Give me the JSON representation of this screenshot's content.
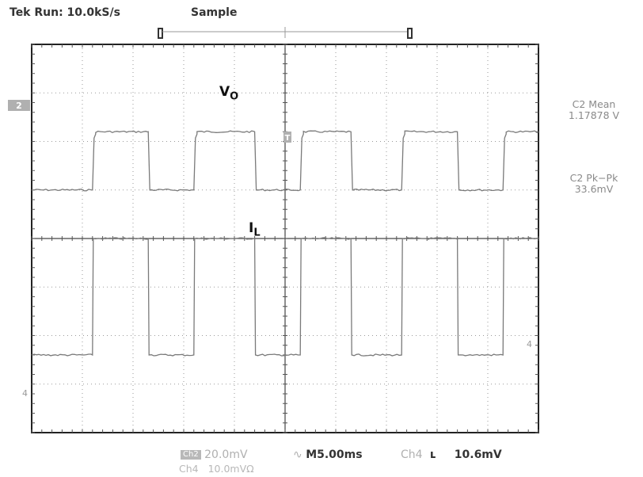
{
  "header": {
    "status": "Tek Run: 10.0kS/s",
    "mode": "Sample"
  },
  "measurements": {
    "mean_label": "C2 Mean",
    "mean_value": "1.17878 V",
    "pkpk_label": "C2 Pk−Pk",
    "pkpk_value": "33.6mV"
  },
  "bottom": {
    "ch2_marker": "Ch2",
    "ch2_scale": "20.0mV",
    "timebase": "M5.00ms",
    "trig_src": "Ch4",
    "trig_slope_icon": "falling-edge-icon",
    "trig_level": "10.6mV",
    "ch4_label": "Ch4",
    "ch4_scale": "10.0mVΩ"
  },
  "markers": {
    "ch2_ref": "2",
    "ch4_ref": "4",
    "trigger_level": "4",
    "trigger_pos": "T"
  },
  "colors": {
    "grid": "#9a9a9a",
    "trace": "#7a7a7a",
    "text_grey": "#8a8a8a"
  },
  "chart_data": {
    "type": "line",
    "title": "",
    "xlabel": "",
    "ylabel": "",
    "grid": true,
    "x_divisions": 10,
    "y_divisions": 8,
    "series": [
      {
        "name": "VO",
        "edges_div": [
          1.2,
          2.3,
          3.2,
          4.4,
          5.3,
          6.3,
          7.3,
          8.4,
          9.3
        ],
        "start_state": "low",
        "high_div": 2.2,
        "low_div": 1.0
      },
      {
        "name": "IL",
        "edges_div": [
          1.2,
          2.3,
          3.2,
          4.4,
          5.3,
          6.3,
          7.3,
          8.4,
          9.3
        ],
        "start_state": "low",
        "high_div": 0.0,
        "low_div": -2.4
      }
    ]
  }
}
